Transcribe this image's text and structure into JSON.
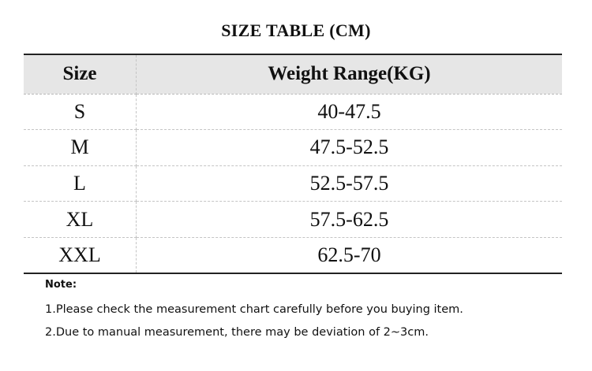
{
  "title": "SIZE TABLE (CM)",
  "table": {
    "headers": [
      "Size",
      "Weight Range(KG)"
    ],
    "rows": [
      {
        "size": "S",
        "weight": "40-47.5"
      },
      {
        "size": "M",
        "weight": "47.5-52.5"
      },
      {
        "size": "L",
        "weight": "52.5-57.5"
      },
      {
        "size": "XL",
        "weight": "57.5-62.5"
      },
      {
        "size": "XXL",
        "weight": "62.5-70"
      }
    ]
  },
  "notes": {
    "heading": "Note:",
    "lines": [
      "1.Please check the measurement chart carefully before you buying item.",
      "2.Due to manual measurement, there may be deviation of 2~3cm."
    ]
  },
  "colors": {
    "header_background": "#e6e6e6",
    "rule": "#222222",
    "dashed_grid": "#c4c4c4"
  }
}
